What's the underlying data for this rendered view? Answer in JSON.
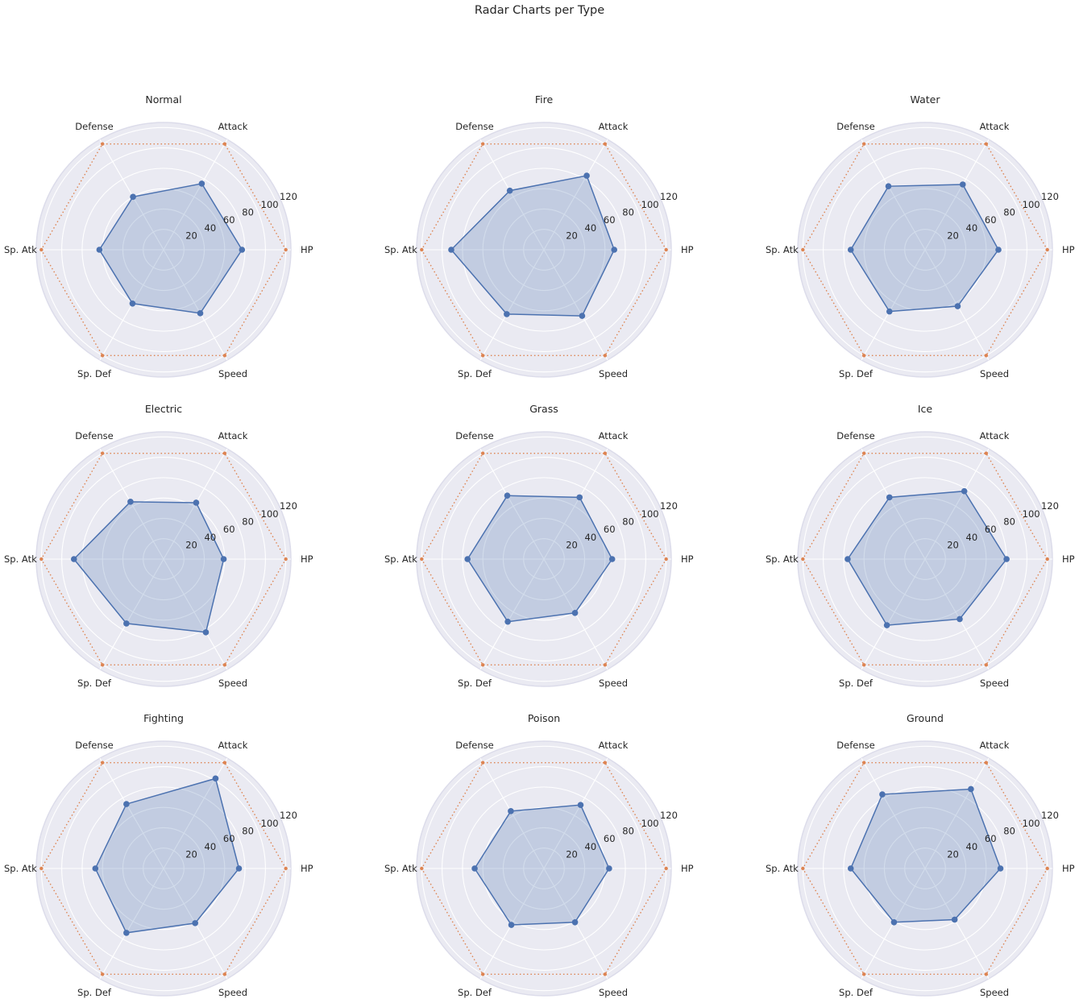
{
  "figure": {
    "title": "Radar Charts per Type"
  },
  "chart_data": {
    "type": "radar",
    "categories": [
      "HP",
      "Attack",
      "Defense",
      "Sp. Atk",
      "Sp. Def",
      "Speed"
    ],
    "radial_ticks": [
      20,
      40,
      60,
      80,
      100,
      120
    ],
    "rlim": [
      0,
      125
    ],
    "grid": true,
    "reference_value": 120,
    "colors": {
      "series": "#4c72b0",
      "reference": "#dd8452",
      "panel_bg": "#eaeaf2",
      "grid": "#ffffff"
    },
    "panels": [
      {
        "title": "Normal",
        "values": [
          77,
          75,
          60,
          63,
          61,
          72
        ]
      },
      {
        "title": "Fire",
        "values": [
          69,
          84,
          67,
          91,
          73,
          75
        ]
      },
      {
        "title": "Water",
        "values": [
          72,
          74,
          72,
          73,
          70,
          64
        ]
      },
      {
        "title": "Electric",
        "values": [
          59,
          64,
          65,
          88,
          73,
          83
        ]
      },
      {
        "title": "Grass",
        "values": [
          67,
          70,
          72,
          75,
          71,
          61
        ]
      },
      {
        "title": "Ice",
        "values": [
          80,
          77,
          70,
          76,
          75,
          68
        ]
      },
      {
        "title": "Fighting",
        "values": [
          74,
          102,
          73,
          67,
          73,
          62
        ]
      },
      {
        "title": "Poison",
        "values": [
          64,
          72,
          65,
          68,
          64,
          61
        ]
      },
      {
        "title": "Ground",
        "values": [
          74,
          90,
          84,
          73,
          61,
          58
        ]
      }
    ]
  }
}
